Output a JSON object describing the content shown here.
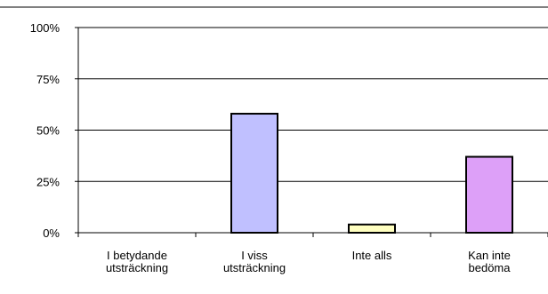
{
  "chart_data": {
    "type": "bar",
    "title": "",
    "xlabel": "",
    "ylabel": "",
    "ylim": [
      0,
      100
    ],
    "yticks": [
      "0%",
      "25%",
      "50%",
      "75%",
      "100%"
    ],
    "yticks_values": [
      0,
      25,
      50,
      75,
      100
    ],
    "grid": true,
    "legend": "none",
    "categories": [
      [
        "I betydande",
        "utsträckning"
      ],
      [
        "I viss",
        "utsträckning"
      ],
      [
        "Inte alls"
      ],
      [
        "Kan inte",
        "bedöma"
      ]
    ],
    "values": [
      0,
      58,
      4,
      37
    ],
    "colors": [
      "#c0c0ff",
      "#c0c0ff",
      "#ffffc0",
      "#dda0f8"
    ]
  }
}
